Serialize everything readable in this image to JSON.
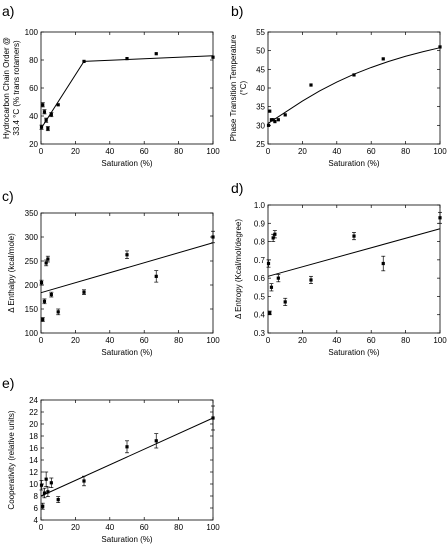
{
  "chart_data": [
    {
      "id": "a",
      "panel_label": "a)",
      "type": "scatter",
      "xlabel": "Saturation (%)",
      "ylabel_lines": [
        "Hydrocarbon Chain Order @",
        "33.4 °C (% trans rotamers)"
      ],
      "xlim": [
        0,
        100
      ],
      "ylim": [
        20,
        100
      ],
      "xticks": [
        0,
        20,
        40,
        60,
        80,
        100
      ],
      "yticks": [
        20,
        40,
        60,
        80,
        100
      ],
      "points": [
        {
          "x": 0.3,
          "y": 32,
          "err": 1.5
        },
        {
          "x": 1,
          "y": 48,
          "err": 1.5
        },
        {
          "x": 2,
          "y": 43,
          "err": 1.5
        },
        {
          "x": 3,
          "y": 37,
          "err": 1.5
        },
        {
          "x": 4,
          "y": 31,
          "err": 1.5
        },
        {
          "x": 6,
          "y": 41,
          "err": 1.5
        },
        {
          "x": 10,
          "y": 48,
          "err": 0
        },
        {
          "x": 25,
          "y": 79,
          "err": 0
        },
        {
          "x": 50,
          "y": 81,
          "err": 0
        },
        {
          "x": 67,
          "y": 84.5,
          "err": 0
        },
        {
          "x": 100,
          "y": 82,
          "err": 0
        }
      ],
      "fit": {
        "kind": "polyline",
        "x": [
          0,
          25,
          100
        ],
        "y": [
          31,
          79,
          83
        ]
      }
    },
    {
      "id": "b",
      "panel_label": "b)",
      "type": "scatter",
      "xlabel": "Saturation (%)",
      "ylabel_lines": [
        "Phase Transition Temperature",
        "(°C)"
      ],
      "xlim": [
        0,
        100
      ],
      "ylim": [
        25,
        55
      ],
      "xticks": [
        0,
        20,
        40,
        60,
        80,
        100
      ],
      "yticks": [
        25,
        30,
        35,
        40,
        45,
        50,
        55
      ],
      "points": [
        {
          "x": 0.3,
          "y": 30,
          "err": 0
        },
        {
          "x": 1,
          "y": 33.8,
          "err": 0
        },
        {
          "x": 2,
          "y": 31.5,
          "err": 0
        },
        {
          "x": 3,
          "y": 31.5,
          "err": 0
        },
        {
          "x": 4,
          "y": 31,
          "err": 0
        },
        {
          "x": 6,
          "y": 31.5,
          "err": 0
        },
        {
          "x": 10,
          "y": 32.8,
          "err": 0
        },
        {
          "x": 25,
          "y": 40.8,
          "err": 0
        },
        {
          "x": 50,
          "y": 43.5,
          "err": 0
        },
        {
          "x": 67,
          "y": 47.8,
          "err": 0
        },
        {
          "x": 100,
          "y": 51,
          "err": 0
        }
      ],
      "fit": {
        "kind": "curve",
        "x": [
          0,
          10,
          20,
          30,
          40,
          50,
          60,
          70,
          80,
          90,
          100
        ],
        "y": [
          30.5,
          33.5,
          36.5,
          39.2,
          41.6,
          43.7,
          45.5,
          47.1,
          48.5,
          49.7,
          50.8
        ]
      }
    },
    {
      "id": "c",
      "panel_label": "c)",
      "type": "scatter",
      "xlabel": "Saturation (%)",
      "ylabel_lines": [
        "Δ Enthalpy (kcal/mole)"
      ],
      "xlim": [
        0,
        100
      ],
      "ylim": [
        100,
        350
      ],
      "xticks": [
        0,
        20,
        40,
        60,
        80,
        100
      ],
      "yticks": [
        100,
        150,
        200,
        250,
        300,
        350
      ],
      "points": [
        {
          "x": 0.3,
          "y": 205,
          "err": 5
        },
        {
          "x": 1,
          "y": 128,
          "err": 4
        },
        {
          "x": 2,
          "y": 166,
          "err": 5
        },
        {
          "x": 3,
          "y": 246,
          "err": 6
        },
        {
          "x": 4,
          "y": 254,
          "err": 6
        },
        {
          "x": 6,
          "y": 180,
          "err": 5
        },
        {
          "x": 10,
          "y": 144,
          "err": 6
        },
        {
          "x": 25,
          "y": 185,
          "err": 5
        },
        {
          "x": 50,
          "y": 263,
          "err": 8
        },
        {
          "x": 67,
          "y": 218,
          "err": 12
        },
        {
          "x": 100,
          "y": 300,
          "err": 12
        }
      ],
      "fit": {
        "kind": "polyline",
        "x": [
          0,
          100
        ],
        "y": [
          184,
          288
        ]
      }
    },
    {
      "id": "d",
      "panel_label": "d)",
      "type": "scatter",
      "xlabel": "Saturation (%)",
      "ylabel_lines": [
        "Δ Entropy (Kcal/mol/degree)"
      ],
      "xlim": [
        0,
        100
      ],
      "ylim": [
        0.3,
        1.0
      ],
      "xticks": [
        0,
        20,
        40,
        60,
        80,
        100
      ],
      "yticks": [
        0.3,
        0.4,
        0.5,
        0.6,
        0.7,
        0.8,
        0.9,
        1.0
      ],
      "ytick_labels": [
        "0.3",
        "0.4",
        "0.5",
        "0.6",
        "0.7",
        "0.8",
        "0.9",
        "1.0"
      ],
      "points": [
        {
          "x": 0.3,
          "y": 0.68,
          "err": 0.02
        },
        {
          "x": 1,
          "y": 0.41,
          "err": 0.01
        },
        {
          "x": 2,
          "y": 0.55,
          "err": 0.02
        },
        {
          "x": 3,
          "y": 0.82,
          "err": 0.02
        },
        {
          "x": 4,
          "y": 0.84,
          "err": 0.02
        },
        {
          "x": 6,
          "y": 0.6,
          "err": 0.02
        },
        {
          "x": 10,
          "y": 0.47,
          "err": 0.02
        },
        {
          "x": 25,
          "y": 0.59,
          "err": 0.02
        },
        {
          "x": 50,
          "y": 0.83,
          "err": 0.02
        },
        {
          "x": 67,
          "y": 0.68,
          "err": 0.04
        },
        {
          "x": 100,
          "y": 0.93,
          "err": 0.03
        }
      ],
      "fit": {
        "kind": "polyline",
        "x": [
          0,
          100
        ],
        "y": [
          0.61,
          0.87
        ]
      }
    },
    {
      "id": "e",
      "panel_label": "e)",
      "type": "scatter",
      "xlabel": "Saturation (%)",
      "ylabel_lines": [
        "Cooperativity (relative units)"
      ],
      "xlim": [
        0,
        100
      ],
      "ylim": [
        4,
        24
      ],
      "xticks": [
        0,
        20,
        40,
        60,
        80,
        100
      ],
      "yticks": [
        4,
        6,
        8,
        10,
        12,
        14,
        16,
        18,
        20,
        22,
        24
      ],
      "points": [
        {
          "x": 0.3,
          "y": 9.8,
          "err": 0.8
        },
        {
          "x": 1,
          "y": 6.3,
          "err": 0.5
        },
        {
          "x": 2,
          "y": 8.5,
          "err": 0.8
        },
        {
          "x": 3,
          "y": 10.8,
          "err": 1.2
        },
        {
          "x": 4,
          "y": 8.7,
          "err": 0.8
        },
        {
          "x": 6,
          "y": 10.2,
          "err": 0.8
        },
        {
          "x": 10,
          "y": 7.4,
          "err": 0.5
        },
        {
          "x": 25,
          "y": 10.5,
          "err": 0.8
        },
        {
          "x": 50,
          "y": 16.2,
          "err": 1.0
        },
        {
          "x": 67,
          "y": 17.2,
          "err": 1.2
        },
        {
          "x": 100,
          "y": 21,
          "err": 2.0
        }
      ],
      "fit": {
        "kind": "polyline",
        "x": [
          0,
          100
        ],
        "y": [
          8,
          21
        ]
      }
    }
  ]
}
